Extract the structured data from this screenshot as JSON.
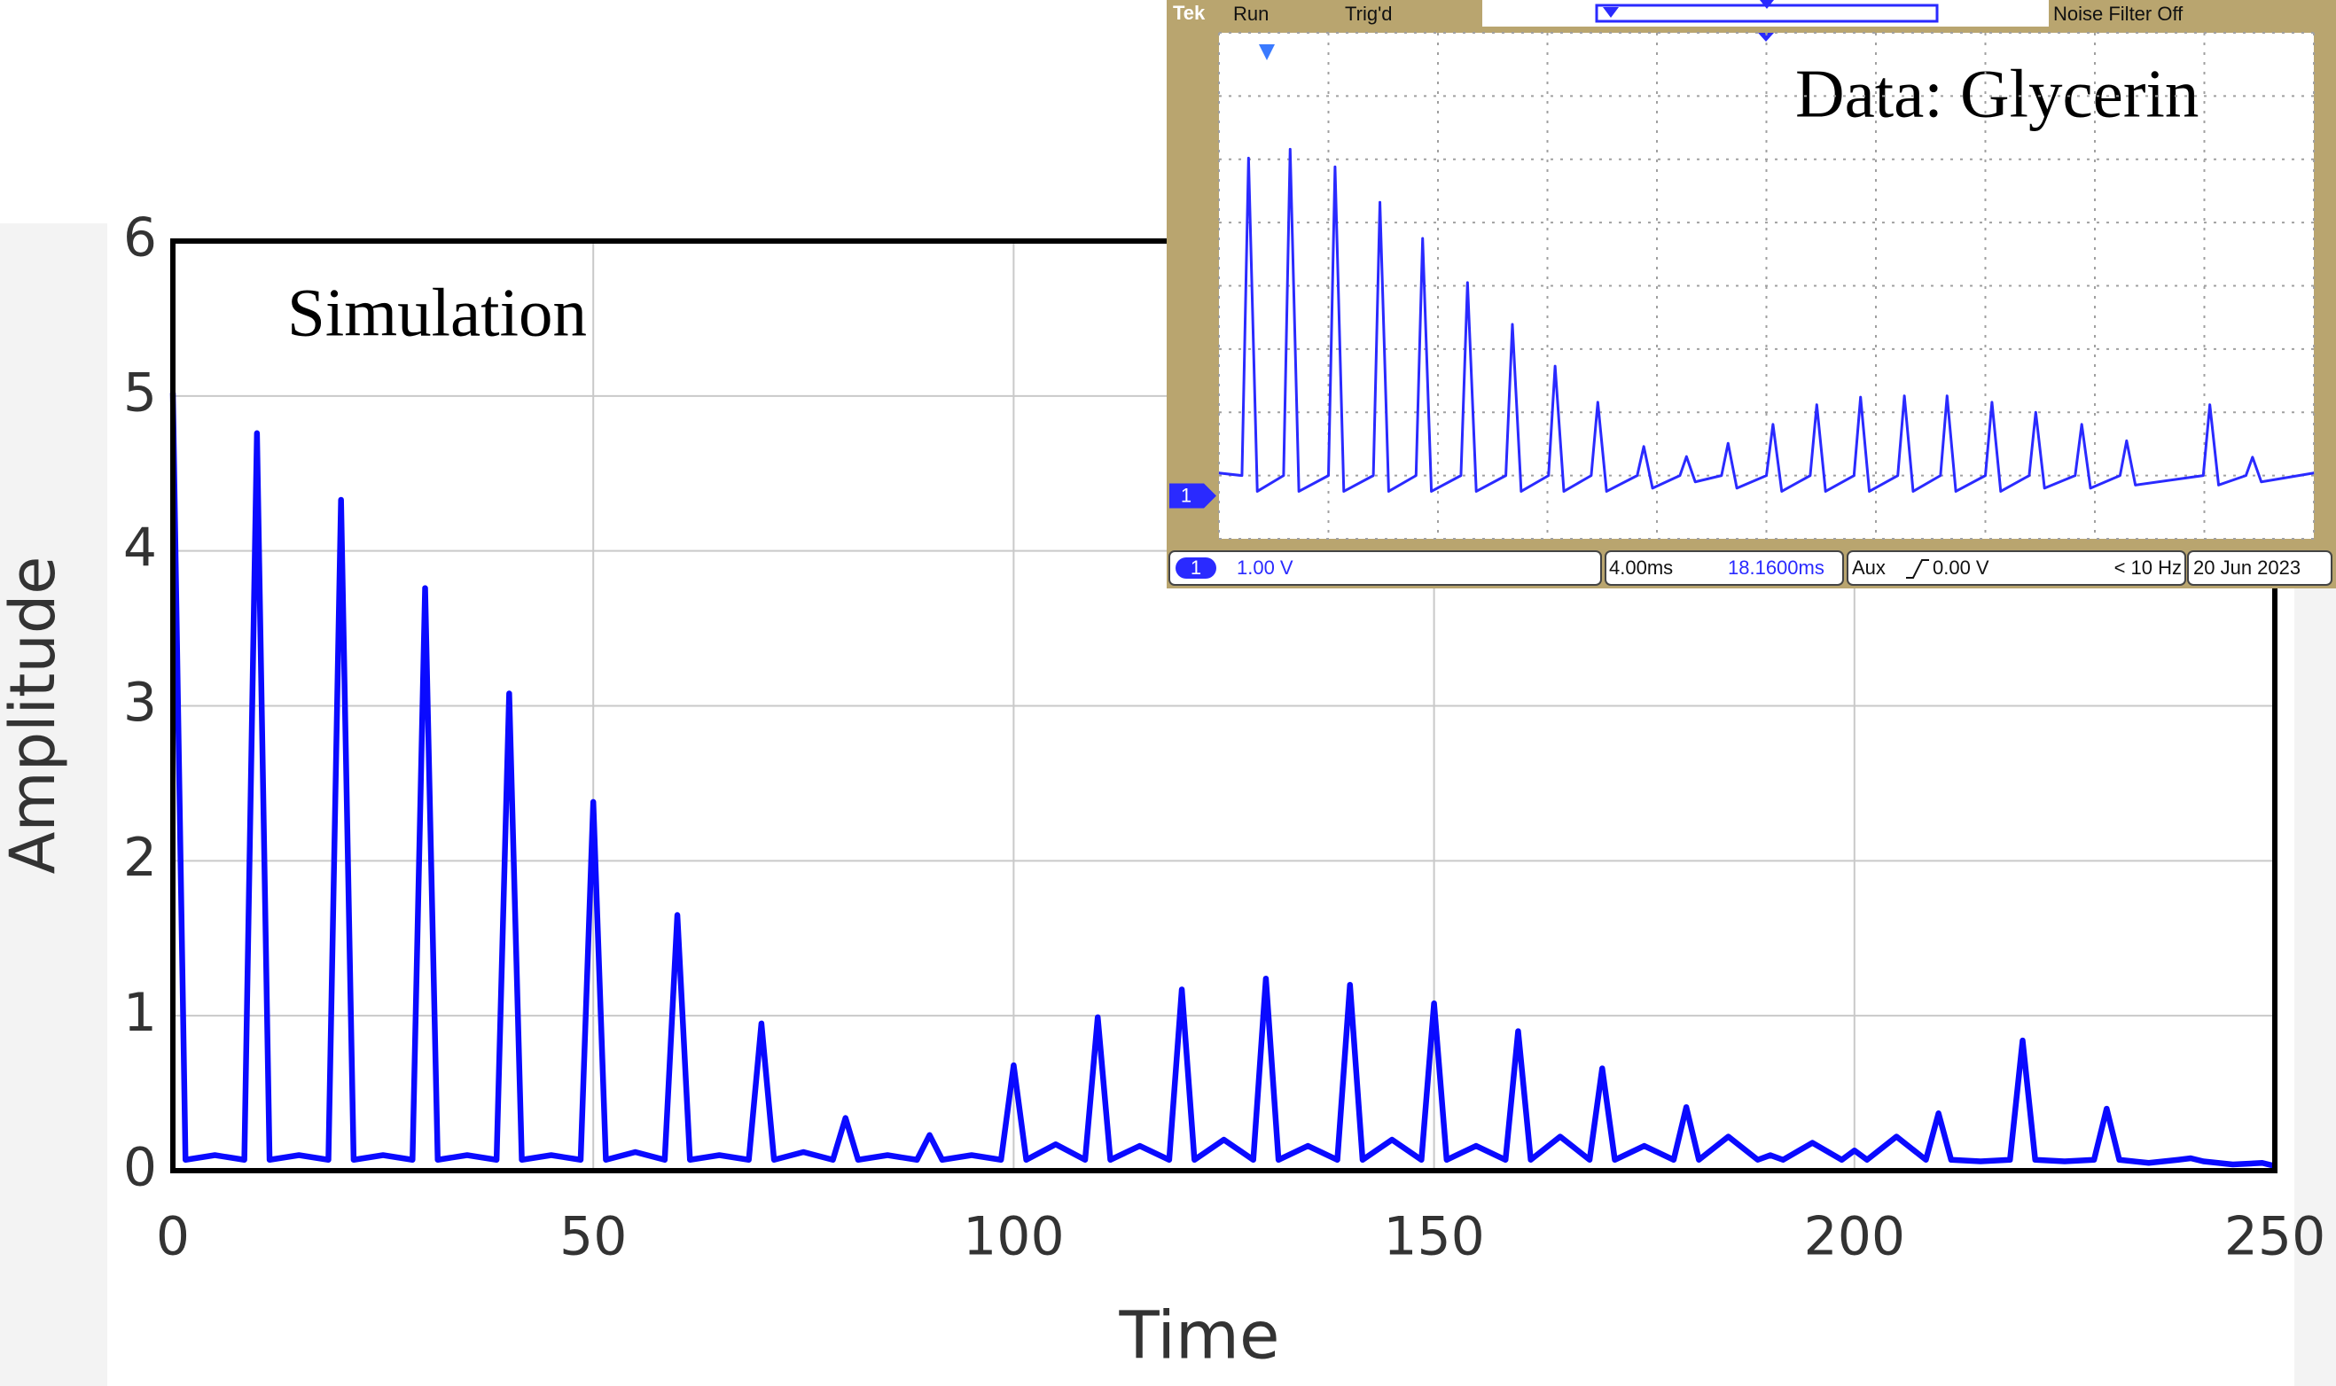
{
  "chart_data": [
    {
      "type": "line",
      "xlabel": "Time",
      "ylabel": "Amplitude",
      "annotation": "Simulation",
      "color": "#0a0aff",
      "x": [
        0,
        1.5,
        5,
        8.5,
        10,
        11.5,
        15,
        18.5,
        20,
        21.5,
        25,
        28.5,
        30,
        31.5,
        35,
        38.5,
        40,
        41.5,
        45,
        48.5,
        50,
        51.5,
        55,
        58.5,
        60,
        61.5,
        65,
        68.5,
        70,
        71.5,
        75,
        78.5,
        80,
        81.5,
        85,
        88.5,
        90,
        91.5,
        95,
        98.5,
        100,
        101.5,
        105,
        108.5,
        110,
        111.5,
        115,
        118.5,
        120,
        121.5,
        125,
        128.5,
        130,
        131.5,
        135,
        138.5,
        140,
        141.5,
        145,
        148.5,
        150,
        151.5,
        155,
        158.5,
        160,
        161.5,
        165,
        168.5,
        170,
        171.5,
        175,
        178.5,
        180,
        181.5,
        185,
        188.5,
        190,
        191.5,
        195,
        198.5,
        200,
        201.5,
        205,
        208.5,
        210,
        211.5,
        215,
        218.5,
        220,
        221.5,
        225,
        228.5,
        230,
        231.5,
        235,
        238.5,
        240,
        241.5,
        245,
        248.5,
        250
      ],
      "values": [
        5.02,
        0.07,
        0.1,
        0.07,
        4.76,
        0.07,
        0.1,
        0.07,
        4.33,
        0.07,
        0.1,
        0.07,
        3.76,
        0.07,
        0.1,
        0.07,
        3.08,
        0.07,
        0.1,
        0.07,
        2.38,
        0.07,
        0.12,
        0.07,
        1.65,
        0.07,
        0.1,
        0.07,
        0.95,
        0.07,
        0.12,
        0.07,
        0.34,
        0.07,
        0.1,
        0.07,
        0.23,
        0.07,
        0.1,
        0.07,
        0.68,
        0.07,
        0.17,
        0.07,
        0.99,
        0.07,
        0.16,
        0.07,
        1.17,
        0.07,
        0.2,
        0.07,
        1.24,
        0.07,
        0.16,
        0.07,
        1.2,
        0.07,
        0.2,
        0.07,
        1.08,
        0.07,
        0.16,
        0.07,
        0.9,
        0.07,
        0.22,
        0.07,
        0.66,
        0.07,
        0.16,
        0.07,
        0.41,
        0.07,
        0.22,
        0.07,
        0.1,
        0.07,
        0.18,
        0.07,
        0.13,
        0.07,
        0.22,
        0.07,
        0.37,
        0.07,
        0.06,
        0.07,
        0.84,
        0.07,
        0.06,
        0.07,
        0.4,
        0.07,
        0.05,
        0.07,
        0.08,
        0.06,
        0.04,
        0.05,
        0.03
      ],
      "xlim": [
        0,
        250
      ],
      "xticks": [
        0,
        50,
        100,
        150,
        200,
        250
      ],
      "ylim": [
        0,
        6
      ],
      "yticks": [
        0,
        1,
        2,
        3,
        4,
        5,
        6
      ],
      "grid": true
    },
    {
      "type": "line",
      "annotation": "Data: Glycerin",
      "color": "#2a2aff",
      "header": {
        "brand": "Tek",
        "state": "Run",
        "trigger": "Trig'd",
        "filter": "Noise Filter Off"
      },
      "readout": {
        "channel": "1",
        "scale": "1.00 V",
        "timebase": "4.00ms",
        "position": "18.1600ms",
        "source": "Aux",
        "level": "0.00 V",
        "frequency": "< 10 Hz",
        "date": "20 Jun  2023"
      },
      "ground_level": 0.68,
      "x": [
        0,
        0.21,
        0.27,
        0.35,
        0.59,
        0.65,
        0.73,
        1.0,
        1.06,
        1.14,
        1.41,
        1.47,
        1.55,
        1.8,
        1.86,
        1.94,
        2.21,
        2.27,
        2.35,
        2.62,
        2.68,
        2.76,
        3.01,
        3.07,
        3.15,
        3.4,
        3.46,
        3.54,
        3.82,
        3.88,
        3.96,
        4.21,
        4.27,
        4.35,
        4.59,
        4.65,
        4.73,
        5.0,
        5.06,
        5.14,
        5.4,
        5.46,
        5.54,
        5.8,
        5.86,
        5.94,
        6.2,
        6.26,
        6.34,
        6.59,
        6.65,
        6.73,
        7.0,
        7.06,
        7.14,
        7.4,
        7.46,
        7.54,
        7.82,
        7.88,
        7.96,
        8.23,
        8.29,
        8.37,
        8.99,
        9.05,
        9.13,
        9.38,
        9.44,
        9.52,
        10
      ],
      "values": [
        1.04,
        1.0,
        6.02,
        0.75,
        1.0,
        6.16,
        0.75,
        1.0,
        5.88,
        0.75,
        1.0,
        5.32,
        0.75,
        1.0,
        4.75,
        0.75,
        1.0,
        4.05,
        0.75,
        1.0,
        3.39,
        0.75,
        1.0,
        2.73,
        0.75,
        1.0,
        2.16,
        0.75,
        1.0,
        1.46,
        0.8,
        1.0,
        1.3,
        0.9,
        1.0,
        1.51,
        0.8,
        1.0,
        1.81,
        0.75,
        1.0,
        2.12,
        0.75,
        1.0,
        2.24,
        0.75,
        1.0,
        2.26,
        0.75,
        1.0,
        2.26,
        0.75,
        1.0,
        2.16,
        0.75,
        1.0,
        2.0,
        0.8,
        1.0,
        1.81,
        0.8,
        1.0,
        1.55,
        0.85,
        1.0,
        2.12,
        0.85,
        1.0,
        1.29,
        0.9,
        1.04
      ],
      "xlim": [
        0,
        10
      ],
      "xticks": [
        0,
        1,
        2,
        3,
        4,
        5,
        6,
        7,
        8,
        9,
        10
      ],
      "ylim": [
        0,
        8
      ],
      "yticks": [
        0,
        1,
        2,
        3,
        4,
        5,
        6,
        7,
        8
      ],
      "grid": true
    }
  ]
}
